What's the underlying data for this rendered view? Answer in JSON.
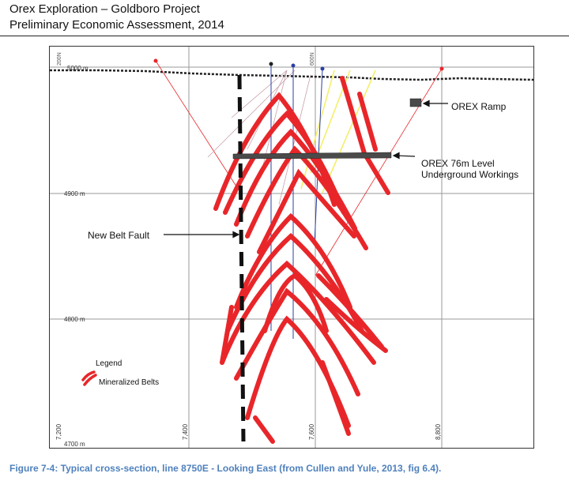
{
  "header": {
    "line1": "Orex Exploration – Goldboro Project",
    "line2": "Preliminary Economic Assessment, 2014"
  },
  "figure": {
    "elevations": {
      "e5000": "5000 m",
      "e4900": "4900 m",
      "e4800": "4800 m",
      "e4700": "4700 m"
    },
    "northings": {
      "n7200": "7,200",
      "n7400": "7,400",
      "n7600": "7,600",
      "n8800": "8,800"
    },
    "top_labels": {
      "t1": "200N",
      "t2": "600N"
    },
    "annotations": {
      "ramp": "OREX Ramp",
      "level_line1": "OREX 76m Level",
      "level_line2": "Underground Workings",
      "fault": "New Belt Fault"
    },
    "legend": {
      "title": "Legend",
      "item": "Mineralized Belts"
    },
    "colors": {
      "belt": "#e8262a",
      "workings": "#4a4a4a",
      "drill_blue": "#2b3fa3",
      "drill_yellow": "#f4ef6a"
    }
  },
  "caption": "Figure 7-4: Typical cross-section, line 8750E - Looking East (from Cullen and Yule, 2013, fig 6.4)."
}
